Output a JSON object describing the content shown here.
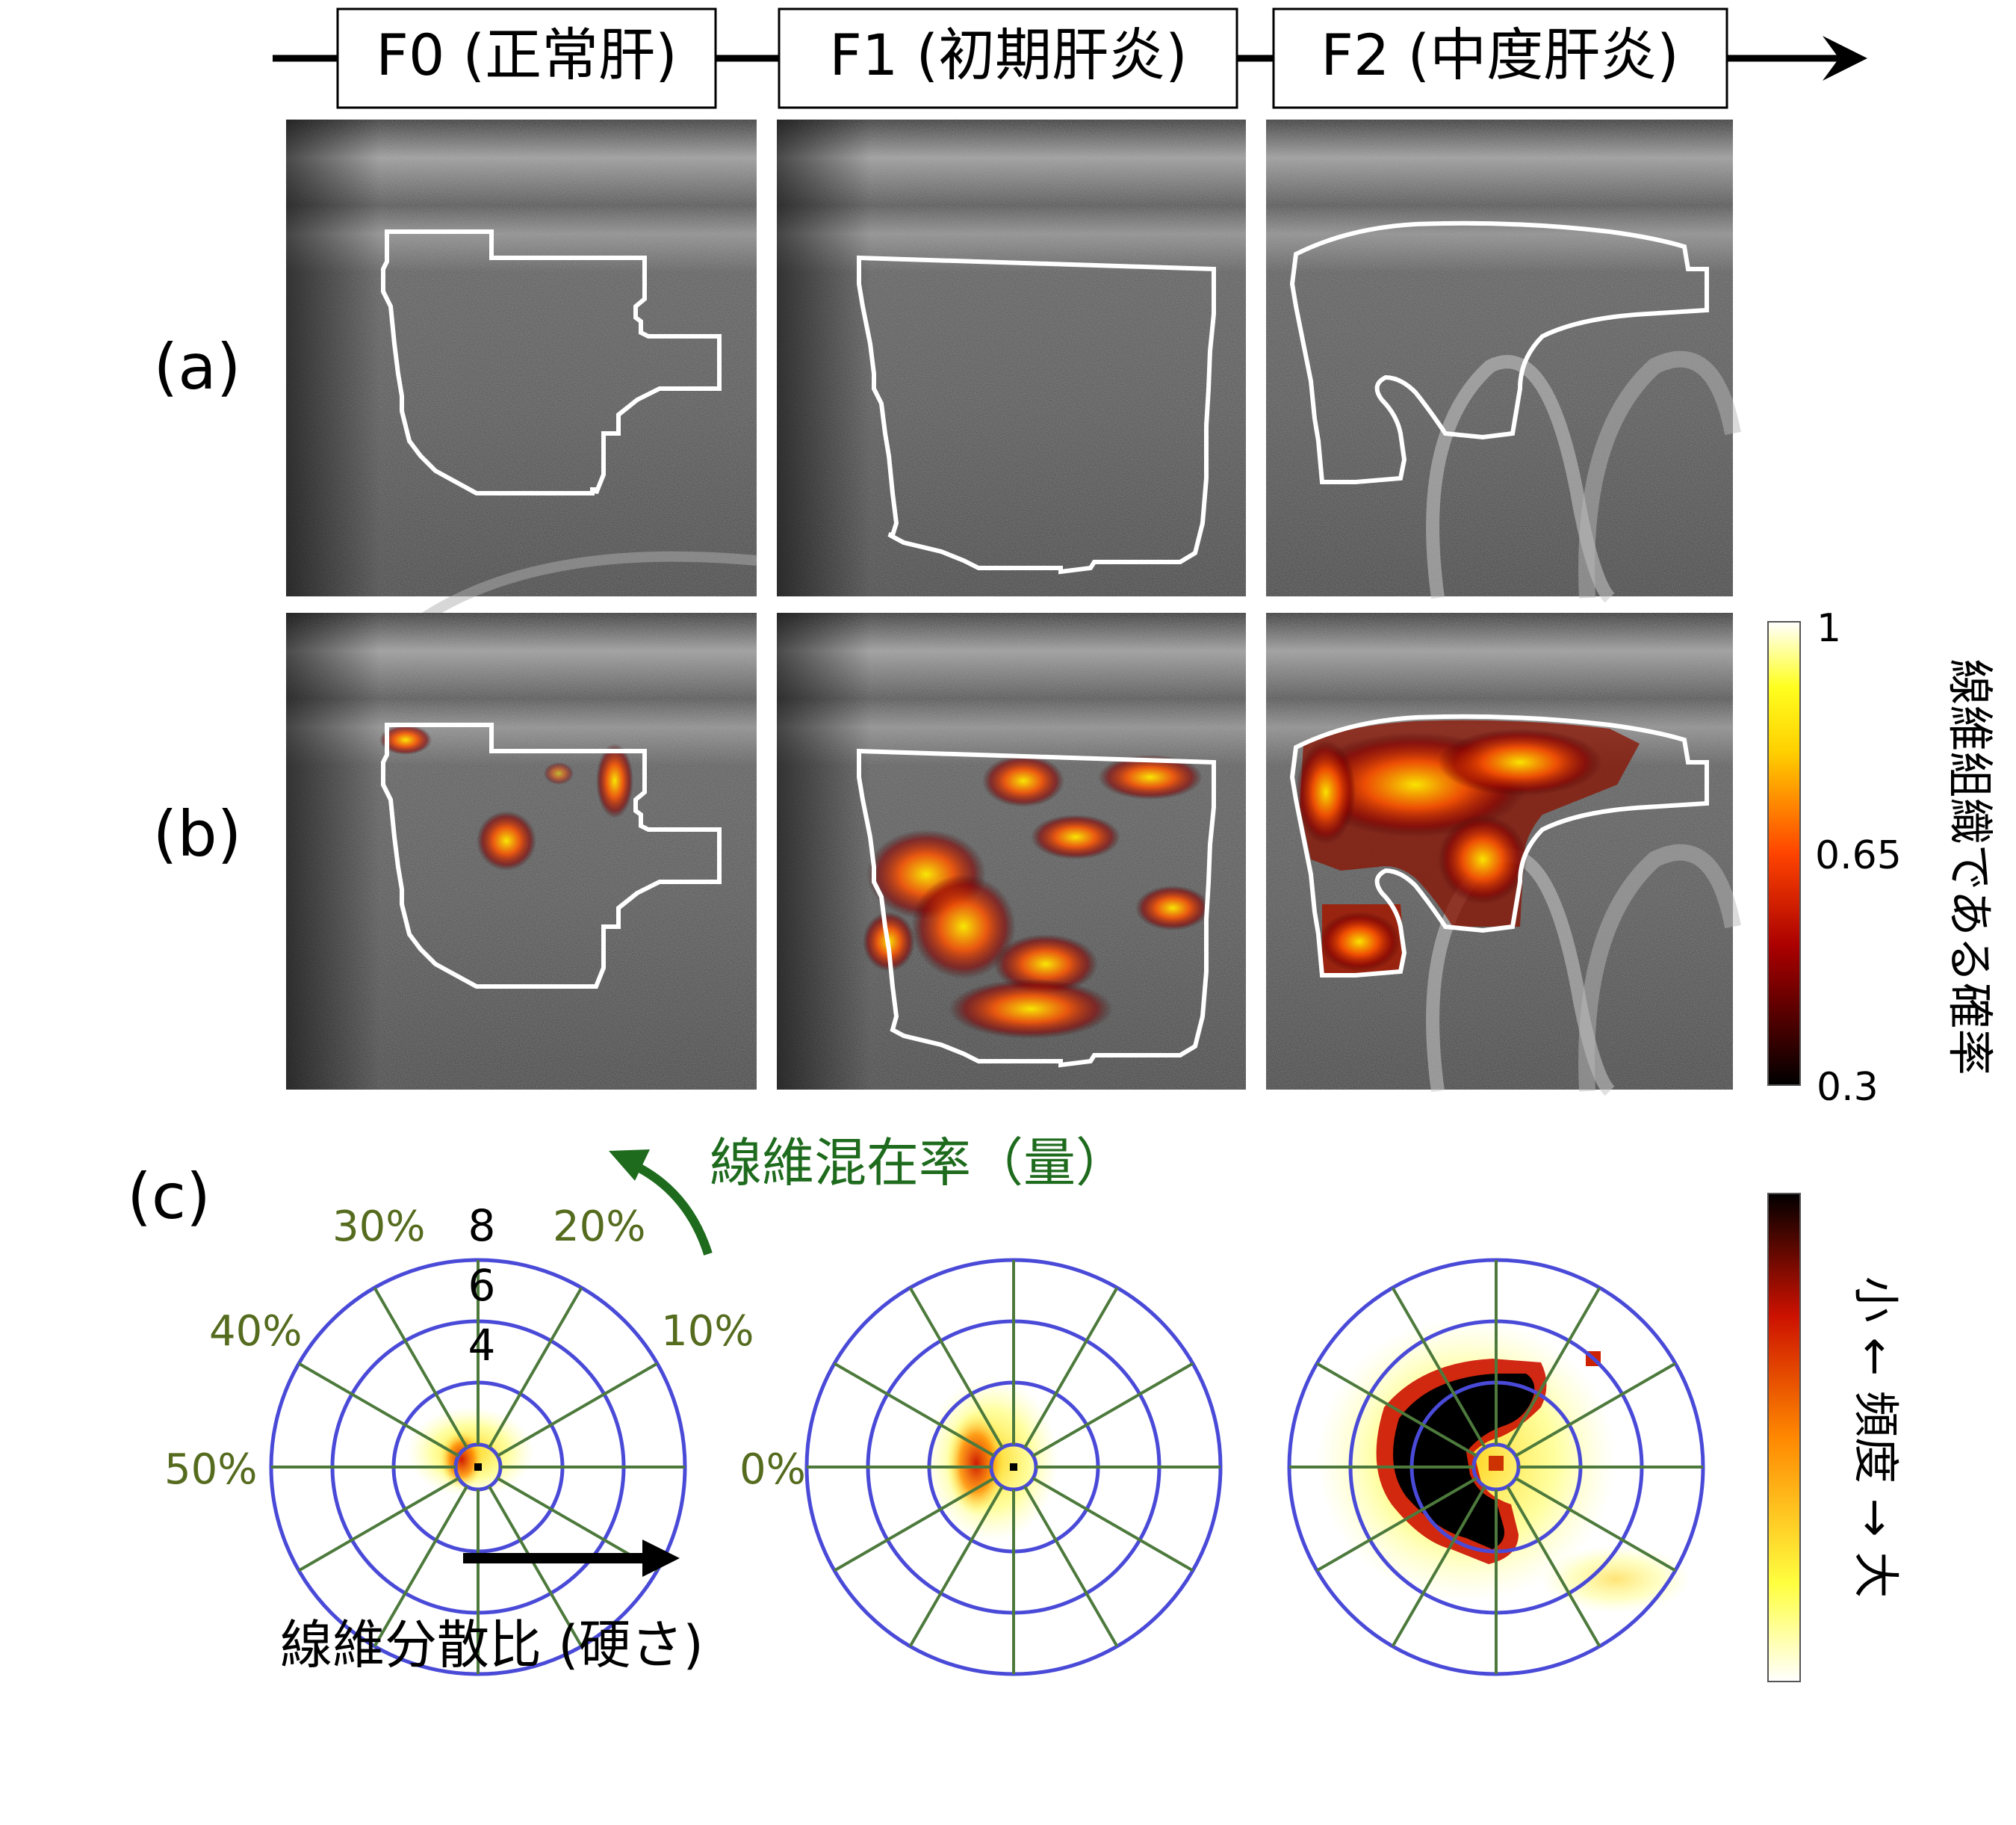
{
  "stages": [
    "F0 (正常肝)",
    "F1 (初期肝炎)",
    "F2 (中度肝炎)"
  ],
  "row_labels": {
    "a": "(a)",
    "b": "(b)",
    "c": "(c)"
  },
  "colorbar_probability": {
    "title": "線維組織である確率",
    "ticks": [
      "1",
      "0.65",
      "0.3"
    ],
    "colors": [
      "#ffffff",
      "#ffff10",
      "#ff9900",
      "#cc1100",
      "#000000"
    ]
  },
  "colorbar_frequency": {
    "title": "小 ← 頻度 → 大",
    "colors": [
      "#ffffff",
      "#ffff40",
      "#ff8800",
      "#cc1100",
      "#000000"
    ]
  },
  "polar": {
    "mixing_rate_label": "線維混在率（量）",
    "dispersion_label": "線維分散比 (硬さ)",
    "angle_labels": [
      "0%",
      "10%",
      "20%",
      "30%",
      "40%",
      "50%"
    ],
    "radial_labels": [
      "8",
      "6",
      "4"
    ],
    "grid_color": "#4a4ad8",
    "spoke_color": "#4d7a3c"
  }
}
